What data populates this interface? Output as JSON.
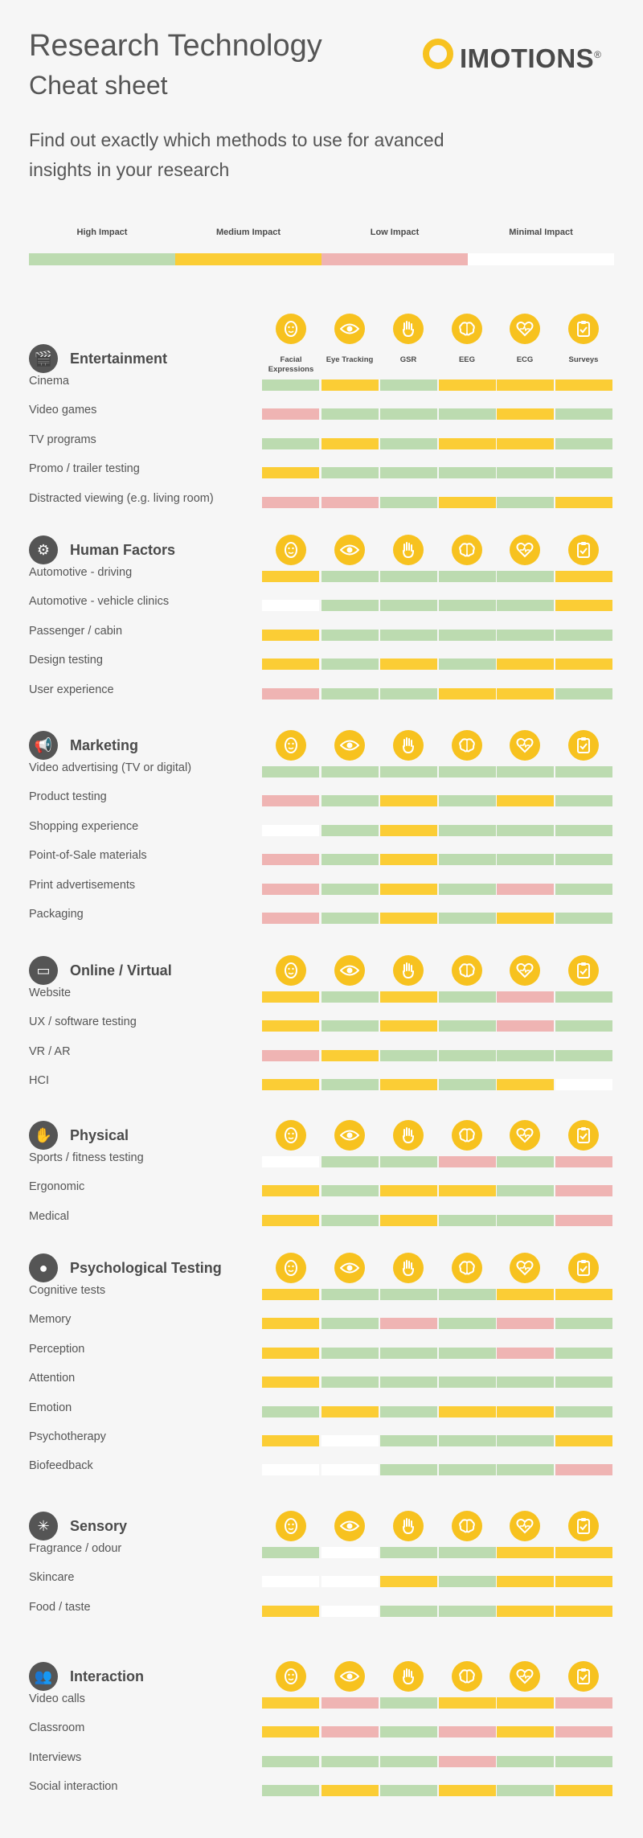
{
  "header": {
    "title": "Research Technology",
    "subtitle": "Cheat sheet",
    "intro": "Find out exactly which methods to use for avanced insights in your research",
    "logo_text": "IMOTIONS",
    "logo_mark": "®"
  },
  "colors": {
    "high": "#bcdbb0",
    "medium": "#fbcd35",
    "low": "#efb4b3",
    "minimal": "#ffffff",
    "icon_bg": "#f7c21f",
    "section_icon_bg": "#555555"
  },
  "legend": [
    {
      "key": "high",
      "label": "High Impact"
    },
    {
      "key": "medium",
      "label": "Medium Impact"
    },
    {
      "key": "low",
      "label": "Low Impact"
    },
    {
      "key": "minimal",
      "label": "Minimal Impact"
    }
  ],
  "methods": [
    {
      "label": "Facial Expressions",
      "icon": "face-icon"
    },
    {
      "label": "Eye Tracking",
      "icon": "eye-icon"
    },
    {
      "label": "GSR",
      "icon": "hand-icon"
    },
    {
      "label": "EEG",
      "icon": "brain-icon"
    },
    {
      "label": "ECG",
      "icon": "heart-icon"
    },
    {
      "label": "Surveys",
      "icon": "clipboard-icon"
    }
  ],
  "sections": [
    {
      "title": "Entertainment",
      "icon": "clapperboard-icon",
      "glyph": "🎬",
      "rows": [
        {
          "label": "Cinema",
          "v": [
            "high",
            "medium",
            "high",
            "medium",
            "medium",
            "medium"
          ]
        },
        {
          "label": "Video games",
          "v": [
            "low",
            "high",
            "high",
            "high",
            "medium",
            "high"
          ]
        },
        {
          "label": "TV programs",
          "v": [
            "high",
            "medium",
            "high",
            "medium",
            "medium",
            "high"
          ]
        },
        {
          "label": "Promo / trailer testing",
          "v": [
            "medium",
            "high",
            "high",
            "high",
            "high",
            "high"
          ]
        },
        {
          "label": "Distracted viewing (e.g. living room)",
          "v": [
            "low",
            "low",
            "high",
            "medium",
            "high",
            "medium"
          ]
        }
      ]
    },
    {
      "title": "Human Factors",
      "icon": "steering-wheel-icon",
      "glyph": "⚙",
      "rows": [
        {
          "label": "Automotive - driving",
          "v": [
            "medium",
            "high",
            "high",
            "high",
            "high",
            "medium"
          ]
        },
        {
          "label": "Automotive - vehicle clinics",
          "v": [
            "minimal",
            "high",
            "high",
            "high",
            "high",
            "medium"
          ]
        },
        {
          "label": "Passenger / cabin",
          "v": [
            "medium",
            "high",
            "high",
            "high",
            "high",
            "high"
          ]
        },
        {
          "label": "Design testing",
          "v": [
            "medium",
            "high",
            "medium",
            "high",
            "medium",
            "medium"
          ]
        },
        {
          "label": "User experience",
          "v": [
            "low",
            "high",
            "high",
            "medium",
            "medium",
            "high"
          ]
        }
      ]
    },
    {
      "title": "Marketing",
      "icon": "megaphone-icon",
      "glyph": "📢",
      "rows": [
        {
          "label": "Video advertising (TV or digital)",
          "v": [
            "high",
            "high",
            "high",
            "high",
            "high",
            "high"
          ]
        },
        {
          "label": "Product testing",
          "v": [
            "low",
            "high",
            "medium",
            "high",
            "medium",
            "high"
          ]
        },
        {
          "label": "Shopping experience",
          "v": [
            "minimal",
            "high",
            "medium",
            "high",
            "high",
            "high"
          ]
        },
        {
          "label": "Point-of-Sale materials",
          "v": [
            "low",
            "high",
            "medium",
            "high",
            "high",
            "high"
          ]
        },
        {
          "label": "Print advertisements",
          "v": [
            "low",
            "high",
            "medium",
            "high",
            "low",
            "high"
          ]
        },
        {
          "label": "Packaging",
          "v": [
            "low",
            "high",
            "medium",
            "high",
            "medium",
            "high"
          ]
        }
      ]
    },
    {
      "title": "Online / Virtual",
      "icon": "monitor-icon",
      "glyph": "▭",
      "rows": [
        {
          "label": "Website",
          "v": [
            "medium",
            "high",
            "medium",
            "high",
            "low",
            "high"
          ]
        },
        {
          "label": "UX / software testing",
          "v": [
            "medium",
            "high",
            "medium",
            "high",
            "low",
            "high"
          ]
        },
        {
          "label": "VR / AR",
          "v": [
            "low",
            "medium",
            "high",
            "high",
            "high",
            "high"
          ]
        },
        {
          "label": "HCI",
          "v": [
            "medium",
            "high",
            "medium",
            "high",
            "medium",
            "minimal"
          ]
        }
      ]
    },
    {
      "title": "Physical",
      "icon": "hand-stop-icon",
      "glyph": "✋",
      "rows": [
        {
          "label": "Sports / fitness testing",
          "v": [
            "minimal",
            "high",
            "high",
            "low",
            "high",
            "low"
          ]
        },
        {
          "label": "Ergonomic",
          "v": [
            "medium",
            "high",
            "medium",
            "medium",
            "high",
            "low"
          ]
        },
        {
          "label": "Medical",
          "v": [
            "medium",
            "high",
            "medium",
            "high",
            "high",
            "low"
          ]
        }
      ]
    },
    {
      "title": "Psychological Testing",
      "icon": "head-icon",
      "glyph": "●",
      "rows": [
        {
          "label": "Cognitive tests",
          "v": [
            "medium",
            "high",
            "high",
            "high",
            "medium",
            "medium"
          ]
        },
        {
          "label": "Memory",
          "v": [
            "medium",
            "high",
            "low",
            "high",
            "low",
            "high"
          ]
        },
        {
          "label": "Perception",
          "v": [
            "medium",
            "high",
            "high",
            "high",
            "low",
            "high"
          ]
        },
        {
          "label": "Attention",
          "v": [
            "medium",
            "high",
            "high",
            "high",
            "high",
            "high"
          ]
        },
        {
          "label": "Emotion",
          "v": [
            "high",
            "medium",
            "high",
            "medium",
            "medium",
            "high"
          ]
        },
        {
          "label": "Psychotherapy",
          "v": [
            "medium",
            "minimal",
            "high",
            "high",
            "high",
            "medium"
          ]
        },
        {
          "label": "Biofeedback",
          "v": [
            "minimal",
            "minimal",
            "high",
            "high",
            "high",
            "low"
          ]
        }
      ]
    },
    {
      "title": "Sensory",
      "icon": "senses-icon",
      "glyph": "✳",
      "rows": [
        {
          "label": "Fragrance / odour",
          "v": [
            "high",
            "minimal",
            "high",
            "high",
            "medium",
            "medium"
          ]
        },
        {
          "label": "Skincare",
          "v": [
            "minimal",
            "minimal",
            "medium",
            "high",
            "medium",
            "medium"
          ]
        },
        {
          "label": "Food / taste",
          "v": [
            "medium",
            "minimal",
            "high",
            "high",
            "medium",
            "medium"
          ]
        }
      ]
    },
    {
      "title": "Interaction",
      "icon": "people-icon",
      "glyph": "👥",
      "rows": [
        {
          "label": "Video calls",
          "v": [
            "medium",
            "low",
            "high",
            "medium",
            "medium",
            "low"
          ]
        },
        {
          "label": "Classroom",
          "v": [
            "medium",
            "low",
            "high",
            "low",
            "medium",
            "low"
          ]
        },
        {
          "label": "Interviews",
          "v": [
            "high",
            "high",
            "high",
            "low",
            "high",
            "high"
          ]
        },
        {
          "label": "Social interaction",
          "v": [
            "high",
            "medium",
            "high",
            "medium",
            "high",
            "medium"
          ]
        }
      ]
    }
  ]
}
